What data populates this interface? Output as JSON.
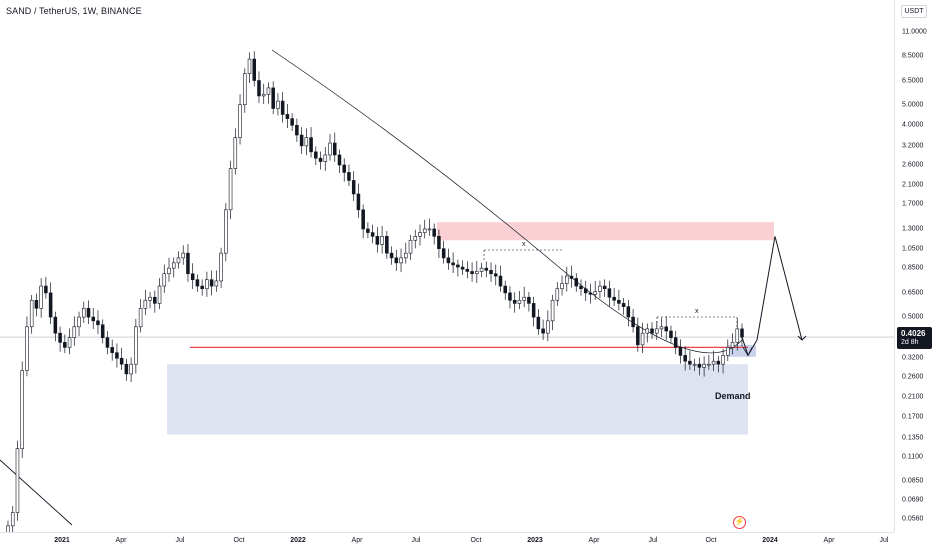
{
  "chart_header": {
    "symbol_label": "SAND / TetherUS, 1W, BINANCE"
  },
  "price_scale": {
    "currency": "USDT",
    "ticks": [
      "11.0000",
      "8.5000",
      "6.5000",
      "5.0000",
      "4.0000",
      "3.2000",
      "2.6000",
      "2.1000",
      "1.7000",
      "1.3000",
      "1.0500",
      "0.8500",
      "0.6500",
      "0.5000",
      "0.3200",
      "0.2600",
      "0.2100",
      "0.1700",
      "0.1350",
      "0.1100",
      "0.0850",
      "0.0690",
      "0.0560"
    ],
    "current_price": "0.4026",
    "countdown": "2d 8h"
  },
  "time_scale": {
    "ticks": [
      {
        "label": "2021",
        "major": true
      },
      {
        "label": "Apr",
        "major": false
      },
      {
        "label": "Jul",
        "major": false
      },
      {
        "label": "Oct",
        "major": false
      },
      {
        "label": "2022",
        "major": true
      },
      {
        "label": "Apr",
        "major": false
      },
      {
        "label": "Jul",
        "major": false
      },
      {
        "label": "Oct",
        "major": false
      },
      {
        "label": "2023",
        "major": true
      },
      {
        "label": "Apr",
        "major": false
      },
      {
        "label": "Jul",
        "major": false
      },
      {
        "label": "Oct",
        "major": false
      },
      {
        "label": "2024",
        "major": true
      },
      {
        "label": "Apr",
        "major": false
      },
      {
        "label": "Jul",
        "major": false
      }
    ]
  },
  "annotations": {
    "demand_label": "Demand",
    "x_mark_1": "x",
    "x_mark_2": "x",
    "event_icon": "lightning-icon",
    "supply_zone_color": "#fbd0d4",
    "demand_zone_color": "#dde3f1",
    "support_line_color": "#e8434f"
  },
  "colors": {
    "bull": "#ffffff",
    "bear": "#131722",
    "wick": "#131722"
  },
  "chart_data": {
    "type": "candlestick",
    "symbol": "SAND / TetherUS",
    "interval": "1W",
    "exchange": "BINANCE",
    "y_scale": "log",
    "current_price": 0.4026,
    "candles_close": [
      0.052,
      0.06,
      0.12,
      0.28,
      0.45,
      0.6,
      0.55,
      0.7,
      0.65,
      0.5,
      0.42,
      0.38,
      0.36,
      0.4,
      0.45,
      0.5,
      0.55,
      0.5,
      0.48,
      0.46,
      0.4,
      0.36,
      0.34,
      0.32,
      0.3,
      0.27,
      0.3,
      0.45,
      0.55,
      0.6,
      0.62,
      0.58,
      0.7,
      0.8,
      0.85,
      0.9,
      0.95,
      1.0,
      0.8,
      0.75,
      0.7,
      0.68,
      0.75,
      0.7,
      0.74,
      1.0,
      1.6,
      2.5,
      3.5,
      5.0,
      7.0,
      8.2,
      6.5,
      5.5,
      5.6,
      6.0,
      4.8,
      5.2,
      4.5,
      4.3,
      4.0,
      3.6,
      3.2,
      3.5,
      3.0,
      2.8,
      2.7,
      2.9,
      3.3,
      2.9,
      2.6,
      2.4,
      2.2,
      1.9,
      1.6,
      1.3,
      1.25,
      1.2,
      1.1,
      1.2,
      1.0,
      0.95,
      0.9,
      0.95,
      1.0,
      1.15,
      1.2,
      1.25,
      1.3,
      1.3,
      1.2,
      1.05,
      0.95,
      0.9,
      0.88,
      0.86,
      0.84,
      0.82,
      0.8,
      0.82,
      0.85,
      0.83,
      0.8,
      0.78,
      0.7,
      0.65,
      0.6,
      0.58,
      0.6,
      0.62,
      0.58,
      0.5,
      0.44,
      0.42,
      0.48,
      0.6,
      0.68,
      0.72,
      0.78,
      0.76,
      0.7,
      0.68,
      0.65,
      0.64,
      0.66,
      0.7,
      0.68,
      0.62,
      0.6,
      0.58,
      0.56,
      0.5,
      0.45,
      0.37,
      0.42,
      0.44,
      0.42,
      0.44,
      0.45,
      0.43,
      0.4,
      0.36,
      0.33,
      0.31,
      0.3,
      0.3,
      0.29,
      0.3,
      0.3,
      0.31,
      0.3,
      0.33,
      0.36,
      0.38,
      0.44,
      0.4026
    ],
    "support_level": 0.36,
    "supply_zone": {
      "low": 1.15,
      "high": 1.4
    },
    "demand_zone": {
      "low": 0.14,
      "high": 0.3
    },
    "projection": {
      "peak": 1.2,
      "target": 0.39
    }
  }
}
